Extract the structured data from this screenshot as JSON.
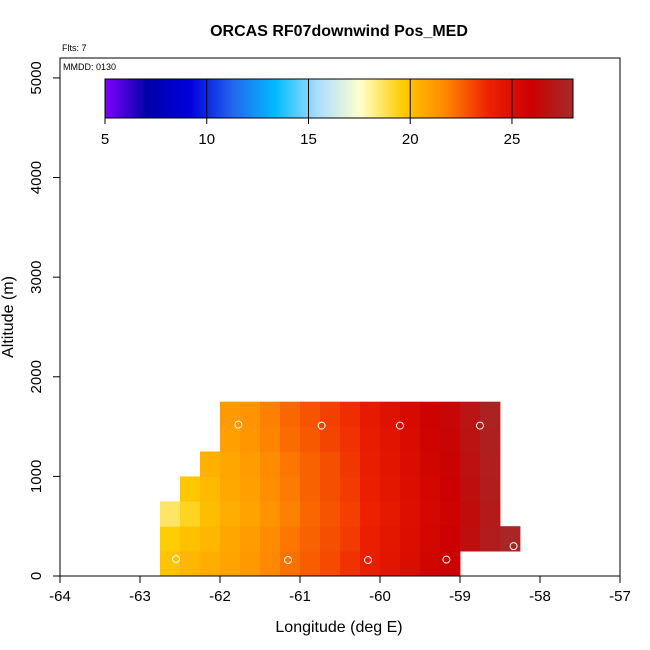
{
  "chart_data": {
    "type": "heatmap",
    "title": "ORCAS RF07downwind Pos_MED",
    "flights_label": "Flts: 7",
    "date_label": "MMDD: 0130",
    "xlabel": "Longitude (deg E)",
    "ylabel": "Altitude (m)",
    "xlim": [
      -64,
      -57
    ],
    "ylim": [
      0,
      5200
    ],
    "xticks": [
      -64,
      -63,
      -62,
      -61,
      -60,
      -59,
      -58,
      -57
    ],
    "xtick_labels": [
      "-64",
      "-63",
      "-62",
      "-61",
      "-60",
      "-59",
      "-58",
      "-57"
    ],
    "yticks": [
      0,
      1000,
      2000,
      3000,
      4000,
      5000
    ],
    "ytick_labels": [
      "0",
      "1000",
      "2000",
      "3000",
      "4000",
      "5000"
    ],
    "colorbar": {
      "min": 5,
      "max": 28,
      "ticks": [
        5,
        10,
        15,
        20,
        25
      ],
      "tick_labels": [
        "5",
        "10",
        "15",
        "20",
        "25"
      ],
      "palette": [
        "#7f00ff",
        "#0000aa",
        "#0000dd",
        "#2266ee",
        "#00bbff",
        "#aaddff",
        "#ffffcc",
        "#ffcc00",
        "#ff8800",
        "#ee2200",
        "#cc0000",
        "#a52a2a"
      ]
    },
    "cell_size": {
      "lon": 0.25,
      "alt": 250
    },
    "columns": [
      {
        "lon": -62.75,
        "ranges": [
          [
            0,
            250,
            19.9
          ],
          [
            250,
            500,
            19.6
          ],
          [
            500,
            750,
            18.6
          ]
        ]
      },
      {
        "lon": -62.5,
        "ranges": [
          [
            0,
            250,
            20.3
          ],
          [
            250,
            500,
            20.0
          ],
          [
            500,
            750,
            19.3
          ],
          [
            750,
            1000,
            19.8
          ]
        ]
      },
      {
        "lon": -62.25,
        "ranges": [
          [
            0,
            250,
            20.6
          ],
          [
            250,
            500,
            20.3
          ],
          [
            500,
            750,
            20.1
          ],
          [
            750,
            1000,
            20.2
          ],
          [
            1000,
            1250,
            20.5
          ]
        ]
      },
      {
        "lon": -62.0,
        "ranges": [
          [
            0,
            250,
            20.9
          ],
          [
            250,
            500,
            20.8
          ],
          [
            500,
            750,
            20.6
          ],
          [
            750,
            1000,
            20.7
          ],
          [
            1000,
            1250,
            20.8
          ],
          [
            1250,
            1500,
            21.0
          ],
          [
            1500,
            1750,
            21.2
          ]
        ]
      },
      {
        "lon": -61.75,
        "ranges": [
          [
            0,
            250,
            21.2
          ],
          [
            250,
            500,
            21.1
          ],
          [
            500,
            750,
            20.9
          ],
          [
            750,
            1000,
            21.0
          ],
          [
            1000,
            1250,
            21.1
          ],
          [
            1250,
            1500,
            21.3
          ],
          [
            1500,
            1750,
            21.4
          ]
        ]
      },
      {
        "lon": -61.5,
        "ranges": [
          [
            0,
            250,
            21.7
          ],
          [
            250,
            500,
            21.6
          ],
          [
            500,
            750,
            21.4
          ],
          [
            750,
            1000,
            21.5
          ],
          [
            1000,
            1250,
            21.6
          ],
          [
            1250,
            1500,
            21.8
          ],
          [
            1500,
            1750,
            21.9
          ]
        ]
      },
      {
        "lon": -61.25,
        "ranges": [
          [
            0,
            250,
            22.2
          ],
          [
            250,
            500,
            22.1
          ],
          [
            500,
            750,
            21.9
          ],
          [
            750,
            1000,
            22.0
          ],
          [
            1000,
            1250,
            22.1
          ],
          [
            1250,
            1500,
            22.3
          ],
          [
            1500,
            1750,
            22.4
          ]
        ]
      },
      {
        "lon": -61.0,
        "ranges": [
          [
            0,
            250,
            22.6
          ],
          [
            250,
            500,
            22.5
          ],
          [
            500,
            750,
            22.4
          ],
          [
            750,
            1000,
            22.5
          ],
          [
            1000,
            1250,
            22.5
          ],
          [
            1250,
            1500,
            22.7
          ],
          [
            1500,
            1750,
            22.8
          ]
        ]
      },
      {
        "lon": -60.75,
        "ranges": [
          [
            0,
            250,
            23.0
          ],
          [
            250,
            500,
            22.9
          ],
          [
            500,
            750,
            22.8
          ],
          [
            750,
            1000,
            22.9
          ],
          [
            1000,
            1250,
            22.9
          ],
          [
            1250,
            1500,
            23.1
          ],
          [
            1500,
            1750,
            23.2
          ]
        ]
      },
      {
        "lon": -60.5,
        "ranges": [
          [
            0,
            250,
            23.5
          ],
          [
            250,
            500,
            23.3
          ],
          [
            500,
            750,
            23.2
          ],
          [
            750,
            1000,
            23.3
          ],
          [
            1000,
            1250,
            23.4
          ],
          [
            1250,
            1500,
            23.5
          ],
          [
            1500,
            1750,
            23.6
          ]
        ]
      },
      {
        "lon": -60.25,
        "ranges": [
          [
            0,
            250,
            24.1
          ],
          [
            250,
            500,
            24.0
          ],
          [
            500,
            750,
            23.9
          ],
          [
            750,
            1000,
            24.0
          ],
          [
            1000,
            1250,
            24.1
          ],
          [
            1250,
            1500,
            24.2
          ],
          [
            1500,
            1750,
            24.3
          ]
        ]
      },
      {
        "lon": -60.0,
        "ranges": [
          [
            0,
            250,
            24.6
          ],
          [
            250,
            500,
            24.5
          ],
          [
            500,
            750,
            24.4
          ],
          [
            750,
            1000,
            24.5
          ],
          [
            1000,
            1250,
            24.6
          ],
          [
            1250,
            1500,
            24.7
          ],
          [
            1500,
            1750,
            24.8
          ]
        ]
      },
      {
        "lon": -59.75,
        "ranges": [
          [
            0,
            250,
            25.1
          ],
          [
            250,
            500,
            25.0
          ],
          [
            500,
            750,
            24.9
          ],
          [
            750,
            1000,
            25.0
          ],
          [
            1000,
            1250,
            25.1
          ],
          [
            1250,
            1500,
            25.2
          ],
          [
            1500,
            1750,
            25.3
          ]
        ]
      },
      {
        "lon": -59.5,
        "ranges": [
          [
            0,
            250,
            25.6
          ],
          [
            250,
            500,
            25.5
          ],
          [
            500,
            750,
            25.4
          ],
          [
            750,
            1000,
            25.5
          ],
          [
            1000,
            1250,
            25.6
          ],
          [
            1250,
            1500,
            25.7
          ],
          [
            1500,
            1750,
            25.8
          ]
        ]
      },
      {
        "lon": -59.25,
        "ranges": [
          [
            0,
            250,
            26.0
          ],
          [
            250,
            500,
            25.9
          ],
          [
            500,
            750,
            25.8
          ],
          [
            750,
            1000,
            25.9
          ],
          [
            1000,
            1250,
            26.0
          ],
          [
            1250,
            1500,
            26.1
          ],
          [
            1500,
            1750,
            26.2
          ]
        ]
      },
      {
        "lon": -59.0,
        "ranges": [
          [
            250,
            500,
            26.6
          ],
          [
            500,
            750,
            26.5
          ],
          [
            750,
            1000,
            26.6
          ],
          [
            1000,
            1250,
            26.7
          ],
          [
            1250,
            1500,
            26.8
          ],
          [
            1500,
            1750,
            26.9
          ]
        ]
      },
      {
        "lon": -58.75,
        "ranges": [
          [
            250,
            500,
            27.3
          ],
          [
            500,
            750,
            27.2
          ],
          [
            750,
            1000,
            27.3
          ],
          [
            1000,
            1250,
            27.4
          ],
          [
            1250,
            1500,
            27.5
          ],
          [
            1500,
            1750,
            27.6
          ]
        ]
      },
      {
        "lon": -58.5,
        "ranges": [
          [
            250,
            500,
            27.8
          ]
        ]
      }
    ],
    "sample_points": [
      {
        "lon": -62.55,
        "alt": 170
      },
      {
        "lon": -61.15,
        "alt": 160
      },
      {
        "lon": -60.15,
        "alt": 160
      },
      {
        "lon": -59.17,
        "alt": 165
      },
      {
        "lon": -58.33,
        "alt": 300
      },
      {
        "lon": -61.77,
        "alt": 1520
      },
      {
        "lon": -60.73,
        "alt": 1510
      },
      {
        "lon": -59.75,
        "alt": 1510
      },
      {
        "lon": -58.75,
        "alt": 1510
      }
    ]
  }
}
